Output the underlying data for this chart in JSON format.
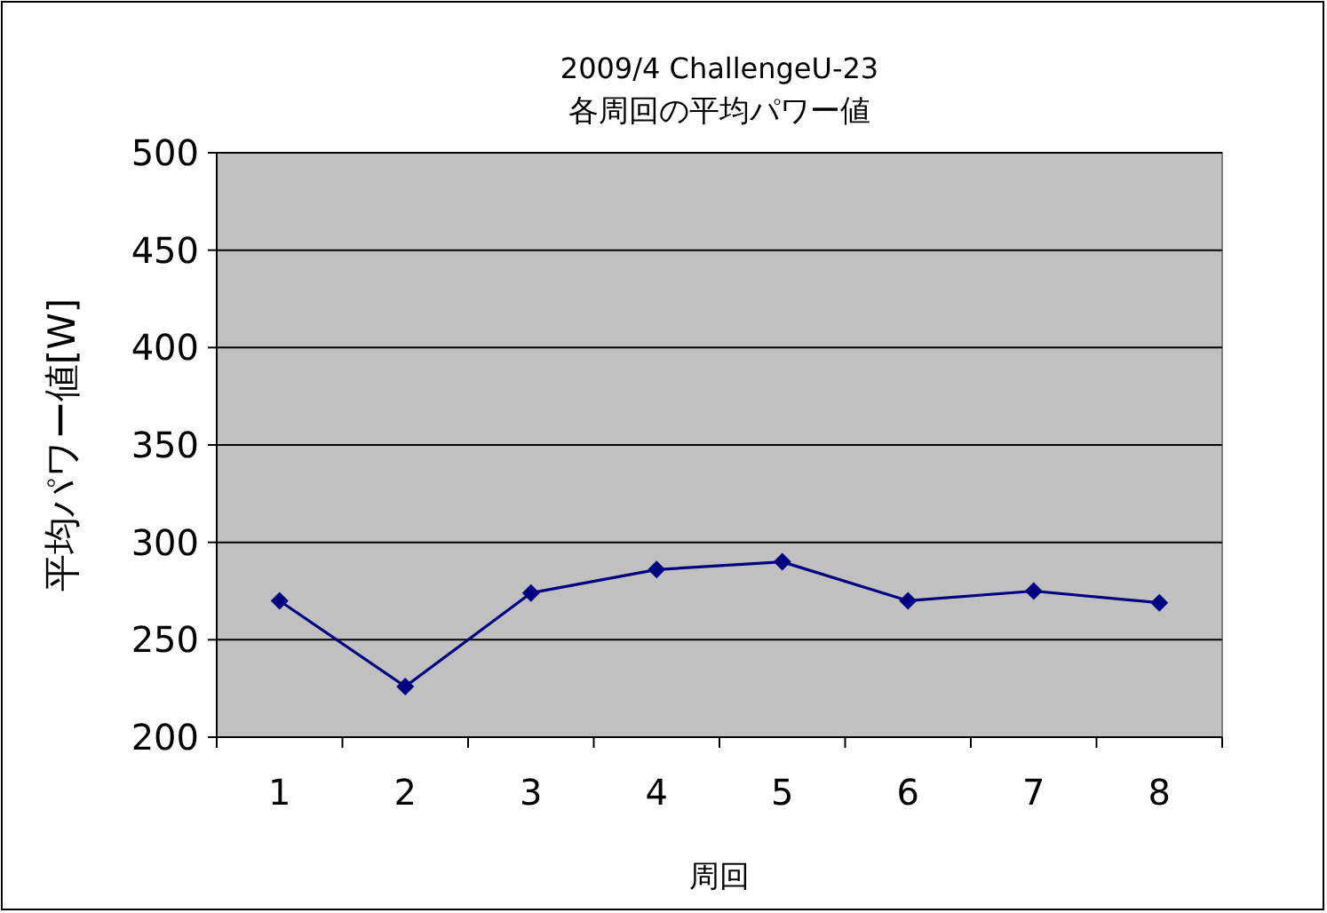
{
  "chart_data": {
    "type": "line",
    "title": "2009/4 ChallengeU-23",
    "subtitle": "各周回の平均パワー値",
    "xlabel": "周回",
    "ylabel": "平均パワー値[W]",
    "categories": [
      "1",
      "2",
      "3",
      "4",
      "5",
      "6",
      "7",
      "8"
    ],
    "series": [
      {
        "color": "#000080",
        "values": [
          270,
          226,
          274,
          286,
          290,
          270,
          275,
          269
        ]
      }
    ],
    "ylim": [
      200,
      500
    ],
    "yticks": [
      200,
      250,
      300,
      350,
      400,
      450,
      500
    ],
    "grid": "y",
    "marker": "diamond",
    "line_style": "solid"
  }
}
